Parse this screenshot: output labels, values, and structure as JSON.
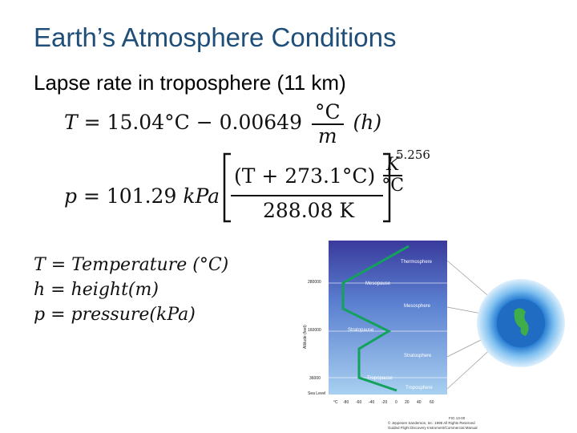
{
  "slide": {
    "title": "Earth’s Atmosphere Conditions",
    "subtitle": "Lapse rate in troposphere (11 km)"
  },
  "equation1": {
    "lhs": "T",
    "equals": "=",
    "const": "15.04°C",
    "minus": "−",
    "coef": "0.00649",
    "frac_num": "°C",
    "frac_den": "m",
    "var": "(h)"
  },
  "equation2": {
    "lhs": "p",
    "equals": "=",
    "const": "101.29",
    "unit": "kPa",
    "inner_left": "(T + 273.1°C)",
    "inner_frac_num": "K",
    "inner_frac_den": "°C",
    "denominator": "288.08 K",
    "exponent": "5.256"
  },
  "definitions": [
    {
      "symbol": "T",
      "rhs": "= Temperature (°C)"
    },
    {
      "symbol": "h",
      "rhs": "= height(m)"
    },
    {
      "symbol": "p",
      "rhs": "= pressure(kPa)"
    }
  ],
  "figure": {
    "layers": [
      "Thermosphere",
      "Mesopause",
      "Mesosphere",
      "Stratopause",
      "Stratosphere",
      "Tropopause",
      "Troposphere"
    ],
    "y_axis_title": "Altitude (feet)",
    "y_ticks": [
      "280000",
      "160000",
      "36000",
      "Sea Level"
    ],
    "x_ticks": [
      "°C",
      "-80",
      "-60",
      "-40",
      "-20",
      "0",
      "20",
      "40",
      "60"
    ],
    "credit": [
      "FIG 13-00",
      "© Jeppesen Sanderson, Inc. 1998 All Rights Reserved",
      "Guided Flight Discovery Instrument/Commercial Manual"
    ],
    "colors": {
      "panel_top": "#3a3a9c",
      "panel_bottom": "#a8d0f0",
      "curve": "#12a25c",
      "globe": "#2a7fd4"
    }
  }
}
